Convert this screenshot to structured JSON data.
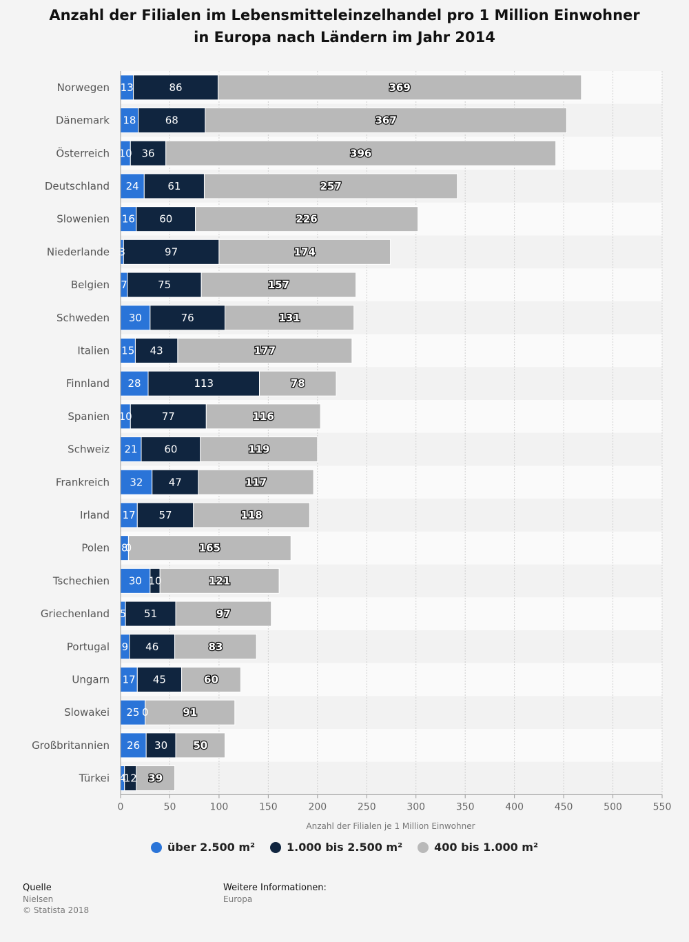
{
  "title_lines": [
    "Anzahl der Filialen im Lebensmitteleinzelhandel pro 1 Million Einwohner",
    "in Europa nach Ländern im Jahr 2014"
  ],
  "colors": {
    "series1": "#2a74d8",
    "series2": "#10253f",
    "series3": "#b9b9b9"
  },
  "footer": {
    "source_heading": "Quelle",
    "source_name": "Nielsen",
    "copyright": "© Statista 2018",
    "info_heading": "Weitere Informationen:",
    "info_value": "Europa"
  },
  "chart_data": {
    "type": "bar",
    "orientation": "horizontal",
    "stacked": true,
    "title": "Anzahl der Filialen im Lebensmitteleinzelhandel pro 1 Million Einwohner in Europa nach Ländern im Jahr 2014",
    "xlabel": "Anzahl der Filialen je 1 Million Einwohner",
    "xlim": [
      0,
      550
    ],
    "xticks": [
      0,
      50,
      100,
      150,
      200,
      250,
      300,
      350,
      400,
      450,
      500,
      550
    ],
    "grid": true,
    "legend_position": "bottom",
    "categories": [
      "Norwegen",
      "Dänemark",
      "Österreich",
      "Deutschland",
      "Slowenien",
      "Niederlande",
      "Belgien",
      "Schweden",
      "Italien",
      "Finnland",
      "Spanien",
      "Schweiz",
      "Frankreich",
      "Irland",
      "Polen",
      "Tschechien",
      "Griechenland",
      "Portugal",
      "Ungarn",
      "Slowakei",
      "Großbritannien",
      "Türkei"
    ],
    "series": [
      {
        "name": "über 2.500 m²",
        "values": [
          13,
          18,
          10,
          24,
          16,
          3,
          7,
          30,
          15,
          28,
          10,
          21,
          32,
          17,
          8,
          30,
          5,
          9,
          17,
          25,
          26,
          4
        ]
      },
      {
        "name": "1.000 bis 2.500 m²",
        "values": [
          86,
          68,
          36,
          61,
          60,
          97,
          75,
          76,
          43,
          113,
          77,
          60,
          47,
          57,
          0,
          10,
          51,
          46,
          45,
          0,
          30,
          12
        ]
      },
      {
        "name": "400 bis 1.000 m²",
        "values": [
          369,
          367,
          396,
          257,
          226,
          174,
          157,
          131,
          177,
          78,
          116,
          119,
          117,
          118,
          165,
          121,
          97,
          83,
          60,
          91,
          50,
          39
        ]
      }
    ]
  }
}
